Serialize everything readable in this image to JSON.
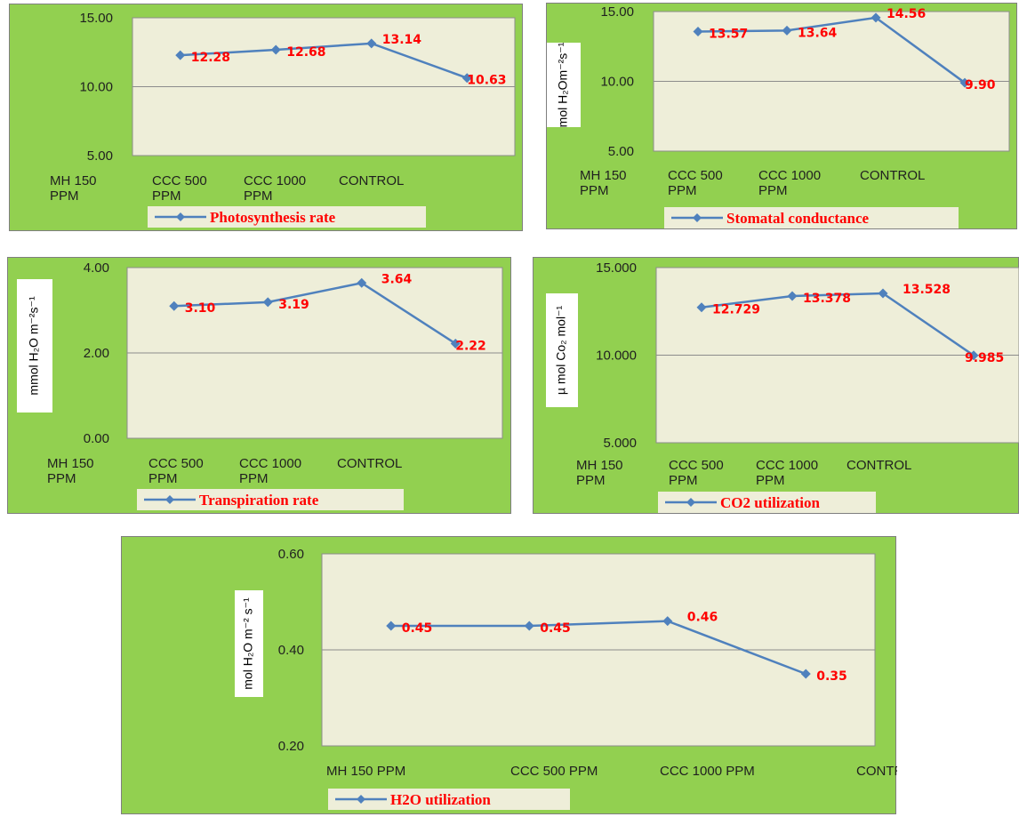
{
  "colors": {
    "panel": "#92d050",
    "plot": "#eeeed9",
    "line": "#4f81bd",
    "label": "#ff0000"
  },
  "chart_data": [
    {
      "type": "line",
      "categories": [
        [
          "MH 150",
          "PPM"
        ],
        [
          "CCC 500",
          "PPM"
        ],
        [
          "CCC 1000",
          "PPM"
        ],
        [
          "CONTROL"
        ]
      ],
      "series": [
        {
          "name": "Photosynthesis rate",
          "values": [
            12.28,
            12.68,
            13.14,
            10.63
          ]
        }
      ],
      "value_labels": [
        "12.28",
        "12.68",
        "13.14",
        "10.63"
      ],
      "ylim": [
        5,
        15
      ],
      "yticks": [
        "5.00",
        "10.00",
        "15.00"
      ],
      "ylabel": "",
      "grid": true,
      "legend": "bottom"
    },
    {
      "type": "line",
      "categories": [
        [
          "MH 150",
          "PPM"
        ],
        [
          "CCC 500",
          "PPM"
        ],
        [
          "CCC 1000",
          "PPM"
        ],
        [
          "CONTROL"
        ]
      ],
      "series": [
        {
          "name": "Stomatal conductance",
          "values": [
            13.57,
            13.64,
            14.56,
            9.9
          ]
        }
      ],
      "value_labels": [
        "13.57",
        "13.64",
        "14.56",
        "9.90"
      ],
      "ylim": [
        5,
        15
      ],
      "yticks": [
        "5.00",
        "10.00",
        "15.00"
      ],
      "ylabel": "mol H₂Om⁻²s⁻¹",
      "grid": true,
      "legend": "bottom"
    },
    {
      "type": "line",
      "categories": [
        [
          "MH 150",
          "PPM"
        ],
        [
          "CCC 500",
          "PPM"
        ],
        [
          "CCC 1000",
          "PPM"
        ],
        [
          "CONTROL"
        ]
      ],
      "series": [
        {
          "name": "Transpiration rate",
          "values": [
            3.1,
            3.19,
            3.64,
            2.22
          ]
        }
      ],
      "value_labels": [
        "3.10",
        "3.19",
        "3.64",
        "2.22"
      ],
      "ylim": [
        0,
        4
      ],
      "yticks": [
        "0.00",
        "2.00",
        "4.00"
      ],
      "ylabel": "mmol H₂O m⁻²s⁻¹",
      "grid": true,
      "legend": "bottom"
    },
    {
      "type": "line",
      "categories": [
        [
          "MH 150",
          "PPM"
        ],
        [
          "CCC 500",
          "PPM"
        ],
        [
          "CCC 1000",
          "PPM"
        ],
        [
          "CONTROL"
        ]
      ],
      "series": [
        {
          "name": "CO2 utilization",
          "values": [
            12.729,
            13.378,
            13.528,
            9.985
          ]
        }
      ],
      "value_labels": [
        "12.729",
        "13.378",
        "13.528",
        "9.985"
      ],
      "ylim": [
        5,
        15
      ],
      "yticks": [
        "5.000",
        "10.000",
        "15.000"
      ],
      "ylabel": "µ mol Co₂ mol⁻¹",
      "grid": true,
      "legend": "bottom"
    },
    {
      "type": "line",
      "categories": [
        [
          "MH 150 PPM"
        ],
        [
          "CCC 500 PPM"
        ],
        [
          "CCC 1000 PPM"
        ],
        [
          "CONTROL"
        ]
      ],
      "series": [
        {
          "name": "H2O utilization",
          "values": [
            0.45,
            0.45,
            0.46,
            0.35
          ]
        }
      ],
      "value_labels": [
        "0.45",
        "0.45",
        "0.46",
        "0.35"
      ],
      "ylim": [
        0.2,
        0.6
      ],
      "yticks": [
        "0.20",
        "0.40",
        "0.60"
      ],
      "ylabel": "mol H₂O m⁻² s⁻¹",
      "grid": true,
      "legend": "bottom"
    }
  ]
}
